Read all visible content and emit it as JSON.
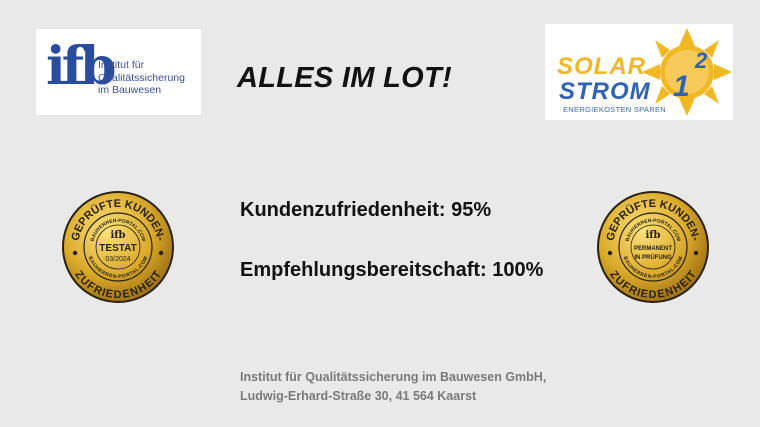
{
  "headline": "ALLES IM LOT!",
  "logos": {
    "ifb": {
      "mark": "ifb",
      "lines": [
        "Institut für",
        "Qualitätssicherung",
        "im Bauwesen"
      ]
    },
    "solarstrom": {
      "word1": "SOLAR",
      "word2": "STROM",
      "superscript_base": "1",
      "superscript": "2",
      "slogan": "ENERGIEKOSTEN SPAREN"
    }
  },
  "stats": [
    {
      "label": "Kundenzufriedenheit:",
      "value": "95%"
    },
    {
      "label": "Empfehlungsbereitschaft:",
      "value": "100%"
    }
  ],
  "seals": [
    {
      "top_arc": "GEPRÜFTE KUNDEN-",
      "bottom_arc": "ZUFRIEDENHEIT",
      "ring_text": "BAUHERREN-PORTAL.COM",
      "center_line1": "TESTAT",
      "center_line2": "03/2024"
    },
    {
      "top_arc": "GEPRÜFTE KUNDEN-",
      "bottom_arc": "ZUFRIEDENHEIT",
      "ring_text": "BAUHERREN-PORTAL.COM",
      "center_line1": "PERMANENT",
      "center_line2": "IN PRÜFUNG"
    }
  ],
  "footer": {
    "line1": "Institut für Qualitätssicherung im Bauwesen GmbH,",
    "line2": "Ludwig-Erhard-Straße 30, 41 564 Kaarst"
  },
  "colors": {
    "background": "#e9e9e9",
    "ifb_blue": "#2a4c9c",
    "solar_yellow": "#f2b823",
    "strom_blue": "#2f63b3",
    "gold": "#d9a92a"
  }
}
